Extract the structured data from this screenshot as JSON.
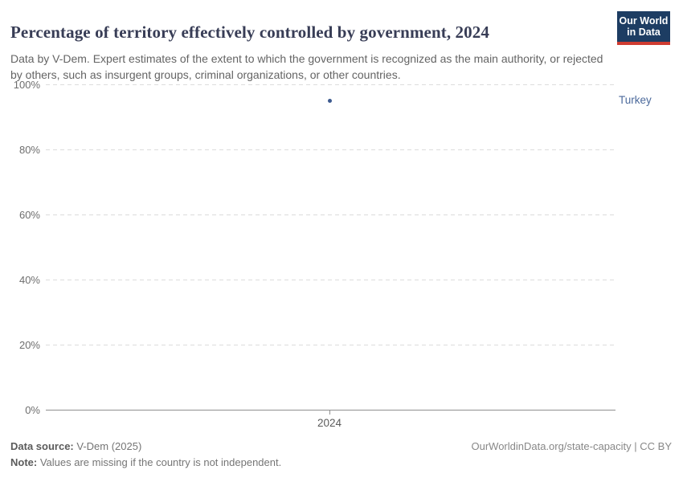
{
  "header": {
    "title": "Percentage of territory effectively controlled by government, 2024",
    "subtitle": "Data by V-Dem. Expert estimates of the extent to which the government is recognized as the main authority, or rejected by others, such as insurgent groups, criminal organizations, or other countries.",
    "logo": {
      "line1": "Our World",
      "line2": "in Data"
    }
  },
  "chart_data": {
    "type": "scatter",
    "title": "Percentage of territory effectively controlled by government, 2024",
    "x": [
      2024
    ],
    "series": [
      {
        "name": "Turkey",
        "values": [
          95
        ]
      }
    ],
    "xlabel": "",
    "ylabel": "",
    "ylim": [
      0,
      100
    ],
    "yticks": [
      0,
      20,
      40,
      60,
      80,
      100
    ],
    "ytick_suffix": "%",
    "xticks": [
      2024
    ],
    "grid": "horizontal-dashed",
    "legend_position": "entity-label-right-of-plot"
  },
  "footer": {
    "datasource_label": "Data source:",
    "datasource_value": " V-Dem (2025)",
    "note_label": "Note:",
    "note_value": " Values are missing if the country is not independent.",
    "link": "OurWorldinData.org/state-capacity | CC BY"
  },
  "colors": {
    "accent_blue": "#4c6a9c",
    "point_blue": "#3d5a8f",
    "title_text": "#383d56",
    "muted_text": "#646464",
    "gridline": "#dcdcdc",
    "axis_line": "#8f8f8f",
    "logo_navy": "#1d3d63",
    "logo_red": "#cf3c31"
  }
}
